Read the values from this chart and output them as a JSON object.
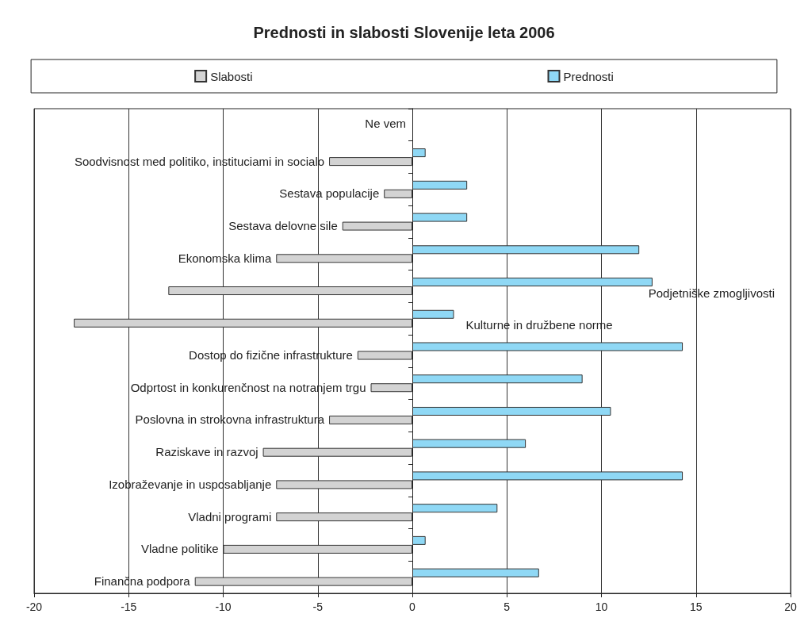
{
  "chart_data": {
    "type": "bar",
    "orientation": "horizontal",
    "title": "Prednosti in slabosti Slovenije leta 2006",
    "categories": [
      "Ne vem",
      "Soodvisnost med politiko, instituciami in socialo",
      "Sestava populacije",
      "Sestava delovne sile",
      "Ekonomska klima",
      "Podjetniške zmogljivosti",
      "Kulturne in družbene norme",
      "Dostop do fizične infrastrukture",
      "Odprtost in konkurenčnost na notranjem trgu",
      "Poslovna in strokovna infrastruktura",
      "Raziskave in razvoj",
      "Izobraževanje in usposabljanje",
      "Vladni programi",
      "Vladne politike",
      "Finančna podpora"
    ],
    "series": [
      {
        "name": "Prednosti",
        "color": "#8fd8f5",
        "values": [
          0,
          0.7,
          2.9,
          2.9,
          12.0,
          12.7,
          2.2,
          14.3,
          9.0,
          10.5,
          6.0,
          14.3,
          4.5,
          0.7,
          6.7
        ]
      },
      {
        "name": "Slabosti",
        "color": "#d3d3d3",
        "values": [
          0,
          -4.4,
          -1.5,
          -3.7,
          -7.2,
          -12.9,
          -17.9,
          -2.9,
          -2.2,
          -4.4,
          -7.9,
          -7.2,
          -7.2,
          -10.0,
          -11.5
        ]
      }
    ],
    "xlim": [
      -20,
      20
    ],
    "xticks": [
      -20,
      -15,
      -10,
      -5,
      0,
      5,
      10,
      15,
      20
    ],
    "grid": "x",
    "legend": "top"
  }
}
